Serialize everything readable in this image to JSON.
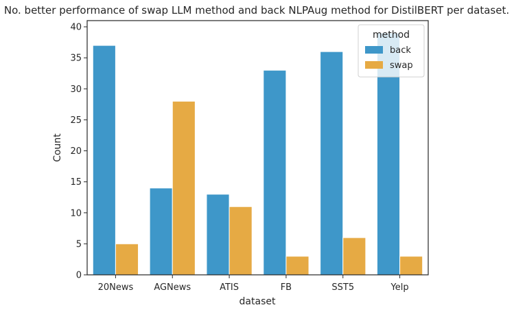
{
  "chart_data": {
    "type": "bar",
    "title": "No. better performance of swap LLM method and back NLPAug method for DistilBERT per dataset.",
    "xlabel": "dataset",
    "ylabel": "Count",
    "categories": [
      "20News",
      "AGNews",
      "ATIS",
      "FB",
      "SST5",
      "Yelp"
    ],
    "series": [
      {
        "name": "back",
        "color": "#3e97c9",
        "values": [
          37,
          14,
          13,
          33,
          36,
          39
        ]
      },
      {
        "name": "swap",
        "color": "#e6aa44",
        "values": [
          5,
          28,
          11,
          3,
          6,
          3
        ]
      }
    ],
    "ylim": [
      0,
      41
    ],
    "yticks": [
      0,
      5,
      10,
      15,
      20,
      25,
      30,
      35,
      40
    ],
    "grid": false,
    "legend": {
      "title": "method",
      "position": "top-right"
    }
  }
}
